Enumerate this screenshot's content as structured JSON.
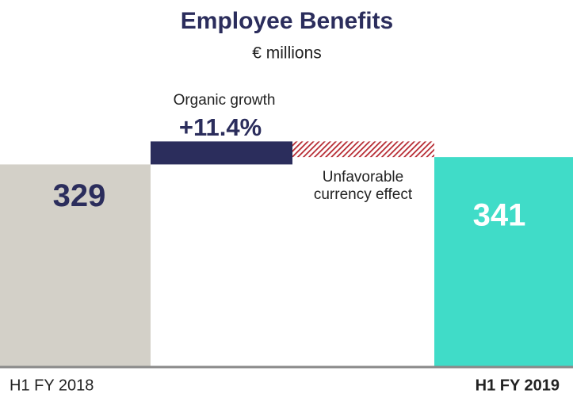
{
  "chart_data": {
    "type": "waterfall",
    "title": "Employee Benefits",
    "subtitle": "€ millions",
    "categories": [
      "H1 FY 2018",
      null,
      null,
      "H1 FY 2019"
    ],
    "values": [
      329,
      37.5,
      -25.5,
      341
    ],
    "totals": [
      true,
      false,
      false,
      true
    ],
    "colors": [
      "#d3d0c8",
      "#2b2d5c",
      "#b5262e",
      "#40dcc8"
    ],
    "hatch": [
      false,
      false,
      true,
      false
    ],
    "annotations": [
      "Organic growth",
      "+11.4%",
      "Unfavorable currency effect"
    ],
    "ylim": [
      0,
      420
    ]
  }
}
